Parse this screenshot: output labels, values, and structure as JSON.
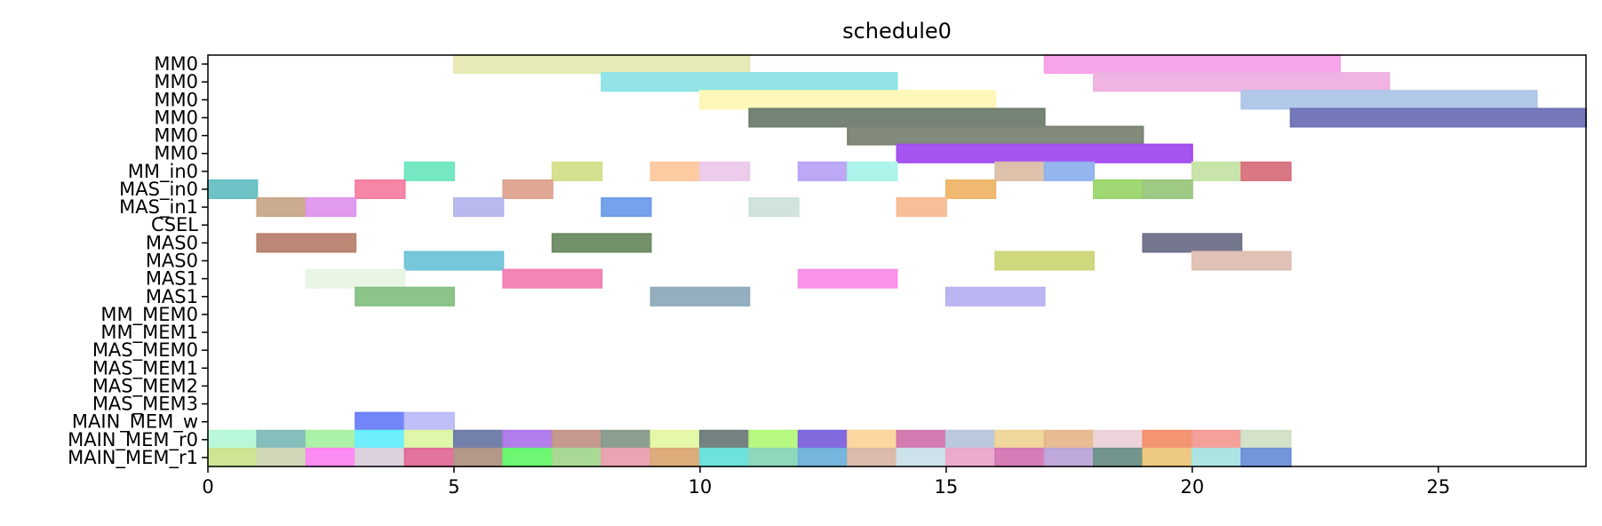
{
  "chart_data": {
    "type": "gantt",
    "title": "schedule0",
    "xlim": [
      0,
      28
    ],
    "xticks": [
      0,
      5,
      10,
      15,
      20,
      25
    ],
    "rows": [
      "MM0",
      "MM0",
      "MM0",
      "MM0",
      "MM0",
      "MM0",
      "MM_in0",
      "MAS_in0",
      "MAS_in1",
      "CSEL",
      "MAS0",
      "MAS0",
      "MAS1",
      "MAS1",
      "MM_MEM0",
      "MM_MEM1",
      "MAS_MEM0",
      "MAS_MEM1",
      "MAS_MEM2",
      "MAS_MEM3",
      "MAIN_MEM_w",
      "MAIN_MEM_r0",
      "MAIN_MEM_r1"
    ],
    "tasks": [
      {
        "row": 0,
        "start": 5,
        "end": 11,
        "color": "#e6e9b2"
      },
      {
        "row": 0,
        "start": 17,
        "end": 23,
        "color": "#f7a0ea"
      },
      {
        "row": 1,
        "start": 8,
        "end": 14,
        "color": "#8ce3e6"
      },
      {
        "row": 1,
        "start": 18,
        "end": 24,
        "color": "#eeb0e0"
      },
      {
        "row": 2,
        "start": 10,
        "end": 16,
        "color": "#fdf8b6"
      },
      {
        "row": 2,
        "start": 21,
        "end": 27,
        "color": "#adc5e8"
      },
      {
        "row": 3,
        "start": 11,
        "end": 17,
        "color": "#6e7d6e"
      },
      {
        "row": 3,
        "start": 22,
        "end": 28,
        "color": "#6e71b5"
      },
      {
        "row": 4,
        "start": 13,
        "end": 19,
        "color": "#7b8474"
      },
      {
        "row": 5,
        "start": 14,
        "end": 20,
        "color": "#a24cf0"
      },
      {
        "row": 6,
        "start": 4,
        "end": 5,
        "color": "#6fe7c0"
      },
      {
        "row": 6,
        "start": 7,
        "end": 8,
        "color": "#d4df8a"
      },
      {
        "row": 6,
        "start": 9,
        "end": 10,
        "color": "#fdc89d"
      },
      {
        "row": 6,
        "start": 10,
        "end": 11,
        "color": "#ecc8ea"
      },
      {
        "row": 6,
        "start": 12,
        "end": 13,
        "color": "#b9a3f5"
      },
      {
        "row": 6,
        "start": 13,
        "end": 14,
        "color": "#a9f4ea"
      },
      {
        "row": 6,
        "start": 16,
        "end": 17,
        "color": "#dcbfa6"
      },
      {
        "row": 6,
        "start": 17,
        "end": 18,
        "color": "#8fb1ee"
      },
      {
        "row": 6,
        "start": 20,
        "end": 21,
        "color": "#c6e3a6"
      },
      {
        "row": 6,
        "start": 21,
        "end": 22,
        "color": "#d8707d"
      },
      {
        "row": 7,
        "start": 0,
        "end": 1,
        "color": "#67c0c4"
      },
      {
        "row": 7,
        "start": 3,
        "end": 4,
        "color": "#f57ea1"
      },
      {
        "row": 7,
        "start": 6,
        "end": 7,
        "color": "#dea38e"
      },
      {
        "row": 7,
        "start": 15,
        "end": 16,
        "color": "#efb56a"
      },
      {
        "row": 7,
        "start": 18,
        "end": 19,
        "color": "#9ad66a"
      },
      {
        "row": 7,
        "start": 19,
        "end": 20,
        "color": "#9ac77f"
      },
      {
        "row": 8,
        "start": 1,
        "end": 2,
        "color": "#c8a88a"
      },
      {
        "row": 8,
        "start": 2,
        "end": 3,
        "color": "#df96ec"
      },
      {
        "row": 8,
        "start": 5,
        "end": 6,
        "color": "#b6b5ec"
      },
      {
        "row": 8,
        "start": 8,
        "end": 9,
        "color": "#6f9cea"
      },
      {
        "row": 8,
        "start": 11,
        "end": 12,
        "color": "#cfe2dc"
      },
      {
        "row": 8,
        "start": 14,
        "end": 15,
        "color": "#f5bc94"
      },
      {
        "row": 10,
        "start": 1,
        "end": 3,
        "color": "#b9826f"
      },
      {
        "row": 10,
        "start": 7,
        "end": 9,
        "color": "#6c8b62"
      },
      {
        "row": 10,
        "start": 19,
        "end": 21,
        "color": "#6e7088"
      },
      {
        "row": 11,
        "start": 4,
        "end": 6,
        "color": "#70c4da"
      },
      {
        "row": 11,
        "start": 16,
        "end": 18,
        "color": "#cdd677"
      },
      {
        "row": 11,
        "start": 20,
        "end": 22,
        "color": "#dfbfb3"
      },
      {
        "row": 12,
        "start": 2,
        "end": 4,
        "color": "#e8f5e4"
      },
      {
        "row": 12,
        "start": 6,
        "end": 8,
        "color": "#f27fb3"
      },
      {
        "row": 12,
        "start": 12,
        "end": 14,
        "color": "#f98ee8"
      },
      {
        "row": 13,
        "start": 3,
        "end": 5,
        "color": "#86c184"
      },
      {
        "row": 13,
        "start": 9,
        "end": 11,
        "color": "#8fabbc"
      },
      {
        "row": 13,
        "start": 15,
        "end": 17,
        "color": "#b7b2f2"
      },
      {
        "row": 20,
        "start": 3,
        "end": 4,
        "color": "#6a7ff7"
      },
      {
        "row": 20,
        "start": 4,
        "end": 5,
        "color": "#bbbcf6"
      },
      {
        "row": 21,
        "start": 0,
        "end": 1,
        "color": "#b5f8d7"
      },
      {
        "row": 21,
        "start": 1,
        "end": 2,
        "color": "#7fbbb7"
      },
      {
        "row": 21,
        "start": 2,
        "end": 3,
        "color": "#a8f0a3"
      },
      {
        "row": 21,
        "start": 3,
        "end": 4,
        "color": "#66eefb"
      },
      {
        "row": 21,
        "start": 4,
        "end": 5,
        "color": "#dcf7a3"
      },
      {
        "row": 21,
        "start": 5,
        "end": 6,
        "color": "#6d7aa6"
      },
      {
        "row": 21,
        "start": 6,
        "end": 7,
        "color": "#ae77ea"
      },
      {
        "row": 21,
        "start": 7,
        "end": 8,
        "color": "#c39489"
      },
      {
        "row": 21,
        "start": 8,
        "end": 9,
        "color": "#859a8a"
      },
      {
        "row": 21,
        "start": 9,
        "end": 10,
        "color": "#e4f7a3"
      },
      {
        "row": 21,
        "start": 10,
        "end": 11,
        "color": "#6d7c7a"
      },
      {
        "row": 21,
        "start": 11,
        "end": 12,
        "color": "#b4f97c"
      },
      {
        "row": 21,
        "start": 12,
        "end": 13,
        "color": "#7d62dd"
      },
      {
        "row": 21,
        "start": 13,
        "end": 14,
        "color": "#fcd59a"
      },
      {
        "row": 21,
        "start": 14,
        "end": 15,
        "color": "#d174ad"
      },
      {
        "row": 21,
        "start": 15,
        "end": 16,
        "color": "#b7c6da"
      },
      {
        "row": 21,
        "start": 16,
        "end": 17,
        "color": "#efd596"
      },
      {
        "row": 21,
        "start": 17,
        "end": 18,
        "color": "#e6b88c"
      },
      {
        "row": 21,
        "start": 18,
        "end": 19,
        "color": "#ebd2d8"
      },
      {
        "row": 21,
        "start": 19,
        "end": 20,
        "color": "#f38f6a"
      },
      {
        "row": 21,
        "start": 20,
        "end": 21,
        "color": "#f39b96"
      },
      {
        "row": 21,
        "start": 21,
        "end": 22,
        "color": "#d1e0c6"
      },
      {
        "row": 22,
        "start": 0,
        "end": 1,
        "color": "#cbe48e"
      },
      {
        "row": 22,
        "start": 1,
        "end": 2,
        "color": "#cfd6b5"
      },
      {
        "row": 22,
        "start": 2,
        "end": 3,
        "color": "#fb86f0"
      },
      {
        "row": 22,
        "start": 3,
        "end": 4,
        "color": "#dad0dc"
      },
      {
        "row": 22,
        "start": 4,
        "end": 5,
        "color": "#e26a98"
      },
      {
        "row": 22,
        "start": 5,
        "end": 6,
        "color": "#b09484"
      },
      {
        "row": 22,
        "start": 6,
        "end": 7,
        "color": "#66f76c"
      },
      {
        "row": 22,
        "start": 7,
        "end": 8,
        "color": "#a5d790"
      },
      {
        "row": 22,
        "start": 8,
        "end": 9,
        "color": "#e9a0b0"
      },
      {
        "row": 22,
        "start": 9,
        "end": 10,
        "color": "#daa974"
      },
      {
        "row": 22,
        "start": 10,
        "end": 11,
        "color": "#66e1da"
      },
      {
        "row": 22,
        "start": 11,
        "end": 12,
        "color": "#8ad6b8"
      },
      {
        "row": 22,
        "start": 12,
        "end": 13,
        "color": "#6fb1da"
      },
      {
        "row": 22,
        "start": 13,
        "end": 14,
        "color": "#d9b7a8"
      },
      {
        "row": 22,
        "start": 14,
        "end": 15,
        "color": "#cae0ea"
      },
      {
        "row": 22,
        "start": 15,
        "end": 16,
        "color": "#eaa6cb"
      },
      {
        "row": 22,
        "start": 16,
        "end": 17,
        "color": "#d476b4"
      },
      {
        "row": 22,
        "start": 17,
        "end": 18,
        "color": "#bba4d8"
      },
      {
        "row": 22,
        "start": 18,
        "end": 19,
        "color": "#6c8f87"
      },
      {
        "row": 22,
        "start": 19,
        "end": 20,
        "color": "#edc67b"
      },
      {
        "row": 22,
        "start": 20,
        "end": 21,
        "color": "#a9e3e1"
      },
      {
        "row": 22,
        "start": 21,
        "end": 22,
        "color": "#6b8fd8"
      }
    ]
  }
}
